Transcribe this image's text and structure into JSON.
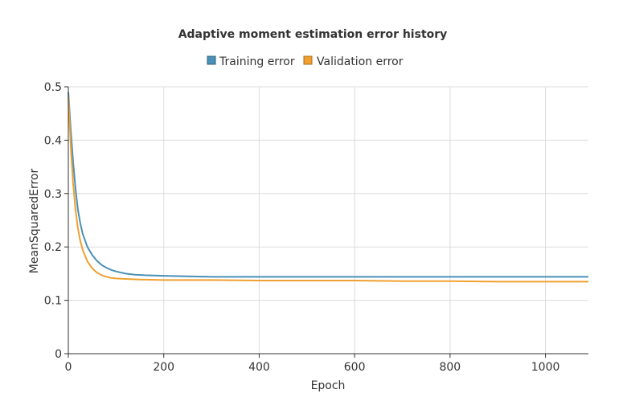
{
  "chart_data": {
    "type": "line",
    "title": "Adaptive moment estimation error history",
    "xlabel": "Epoch",
    "ylabel": "MeanSquaredError",
    "xlim": [
      0,
      1090
    ],
    "ylim": [
      0,
      0.5
    ],
    "xticks": [
      0,
      200,
      400,
      600,
      800,
      1000
    ],
    "yticks": [
      0,
      0.1,
      0.2,
      0.3,
      0.4,
      0.5
    ],
    "grid": true,
    "legend_position": "top-center",
    "series": [
      {
        "name": "Training error",
        "color": "#4a90b8",
        "points": [
          [
            0,
            0.49
          ],
          [
            5,
            0.42
          ],
          [
            10,
            0.36
          ],
          [
            15,
            0.31
          ],
          [
            20,
            0.27
          ],
          [
            25,
            0.245
          ],
          [
            30,
            0.225
          ],
          [
            40,
            0.2
          ],
          [
            50,
            0.185
          ],
          [
            60,
            0.174
          ],
          [
            70,
            0.166
          ],
          [
            80,
            0.161
          ],
          [
            90,
            0.157
          ],
          [
            100,
            0.154
          ],
          [
            120,
            0.15
          ],
          [
            140,
            0.148
          ],
          [
            160,
            0.147
          ],
          [
            200,
            0.146
          ],
          [
            250,
            0.145
          ],
          [
            300,
            0.144
          ],
          [
            400,
            0.144
          ],
          [
            500,
            0.144
          ],
          [
            600,
            0.144
          ],
          [
            700,
            0.144
          ],
          [
            800,
            0.144
          ],
          [
            900,
            0.144
          ],
          [
            1000,
            0.144
          ],
          [
            1090,
            0.144
          ]
        ]
      },
      {
        "name": "Validation error",
        "color": "#f0a030",
        "points": [
          [
            0,
            0.48
          ],
          [
            5,
            0.39
          ],
          [
            10,
            0.32
          ],
          [
            15,
            0.27
          ],
          [
            20,
            0.235
          ],
          [
            25,
            0.212
          ],
          [
            30,
            0.195
          ],
          [
            40,
            0.173
          ],
          [
            50,
            0.16
          ],
          [
            60,
            0.152
          ],
          [
            70,
            0.147
          ],
          [
            80,
            0.144
          ],
          [
            90,
            0.142
          ],
          [
            100,
            0.141
          ],
          [
            120,
            0.14
          ],
          [
            150,
            0.139
          ],
          [
            200,
            0.138
          ],
          [
            300,
            0.138
          ],
          [
            400,
            0.137
          ],
          [
            500,
            0.137
          ],
          [
            600,
            0.137
          ],
          [
            700,
            0.136
          ],
          [
            800,
            0.136
          ],
          [
            900,
            0.135
          ],
          [
            1000,
            0.135
          ],
          [
            1090,
            0.135
          ]
        ]
      }
    ]
  }
}
